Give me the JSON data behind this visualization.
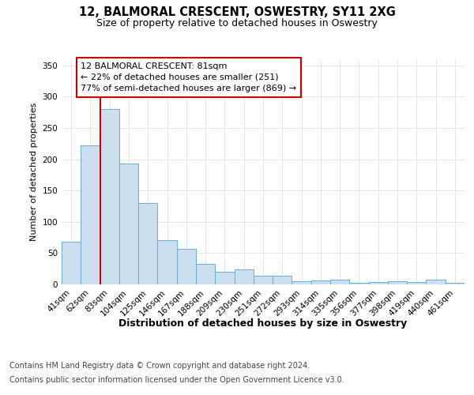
{
  "title": "12, BALMORAL CRESCENT, OSWESTRY, SY11 2XG",
  "subtitle": "Size of property relative to detached houses in Oswestry",
  "xlabel": "Distribution of detached houses by size in Oswestry",
  "ylabel": "Number of detached properties",
  "categories": [
    "41sqm",
    "62sqm",
    "83sqm",
    "104sqm",
    "125sqm",
    "146sqm",
    "167sqm",
    "188sqm",
    "209sqm",
    "230sqm",
    "251sqm",
    "272sqm",
    "293sqm",
    "314sqm",
    "335sqm",
    "356sqm",
    "377sqm",
    "398sqm",
    "419sqm",
    "440sqm",
    "461sqm"
  ],
  "values": [
    68,
    222,
    280,
    193,
    130,
    71,
    57,
    33,
    20,
    24,
    14,
    14,
    5,
    6,
    7,
    2,
    4,
    5,
    4,
    7,
    2
  ],
  "bar_color": "#ccdff0",
  "bar_edge_color": "#6aaed6",
  "red_line_x": 1.5,
  "annotation_text": "12 BALMORAL CRESCENT: 81sqm\n← 22% of detached houses are smaller (251)\n77% of semi-detached houses are larger (869) →",
  "annotation_box_color": "#ffffff",
  "annotation_box_edge_color": "#cc0000",
  "ylim": [
    0,
    360
  ],
  "yticks": [
    0,
    50,
    100,
    150,
    200,
    250,
    300,
    350
  ],
  "footer_line1": "Contains HM Land Registry data © Crown copyright and database right 2024.",
  "footer_line2": "Contains public sector information licensed under the Open Government Licence v3.0.",
  "bg_color": "#ffffff",
  "plot_bg_color": "#ffffff",
  "title_fontsize": 10.5,
  "subtitle_fontsize": 9,
  "xlabel_fontsize": 9,
  "ylabel_fontsize": 8,
  "tick_fontsize": 7.5,
  "annotation_fontsize": 8,
  "footer_fontsize": 7
}
